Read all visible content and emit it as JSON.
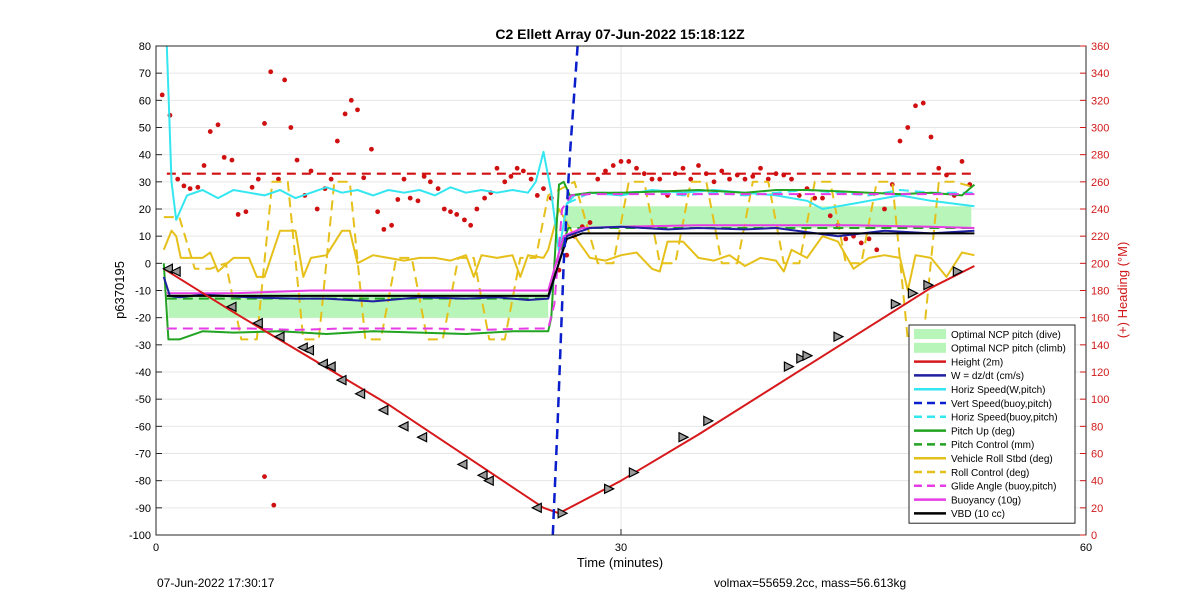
{
  "footer": {
    "timestamp": "07-Jun-2022 17:30:17",
    "info": "volmax=55659.2cc, mass=56.613kg"
  },
  "chart_data": {
    "type": "line",
    "title": "C2 Ellett Array 07-Jun-2022 15:18:12Z",
    "xlabel": "Time (minutes)",
    "ylabel": "p6370195",
    "y2label": "(+) Heading (°M)",
    "xlim": [
      0,
      60
    ],
    "ylim": [
      -100,
      80
    ],
    "y2lim": [
      0,
      360
    ],
    "xticks": [
      0,
      30,
      60
    ],
    "yticks": [
      -100,
      -90,
      -80,
      -70,
      -60,
      -50,
      -40,
      -30,
      -20,
      -10,
      0,
      10,
      20,
      30,
      40,
      50,
      60,
      70,
      80
    ],
    "y2ticks": [
      0,
      20,
      40,
      60,
      80,
      100,
      120,
      140,
      160,
      180,
      200,
      220,
      240,
      260,
      280,
      300,
      320,
      340,
      360
    ],
    "grid": true,
    "legend_position": "bottom-right",
    "colors": {
      "height": "#d7191c",
      "w": "#1f1fa0",
      "horiz": "#33e6f0",
      "vert": "#0a1ecc",
      "pitch": "#22a322",
      "roll": "#e6c01a",
      "glide": "#e63ce6",
      "vbd": "#000000",
      "band": "#b8f5b8",
      "heading": "#d01010",
      "right_axis": "#d01818"
    },
    "legend": [
      {
        "label": "Optimal NCP pitch (dive)",
        "style": "patch",
        "color": "#b8f5b8"
      },
      {
        "label": "Optimal NCP pitch (climb)",
        "style": "patch",
        "color": "#b8f5b8"
      },
      {
        "label": "Height (2m)",
        "style": "solid",
        "color": "#d7191c"
      },
      {
        "label": "W = dz/dt (cm/s)",
        "style": "solid",
        "color": "#1f1fa0"
      },
      {
        "label": "Horiz Speed(W,pitch)",
        "style": "solid",
        "color": "#33e6f0"
      },
      {
        "label": "Vert Speed(buoy,pitch)",
        "style": "dashed",
        "color": "#0a1ecc"
      },
      {
        "label": "Horiz Speed(buoy,pitch)",
        "style": "dashed",
        "color": "#33e6f0"
      },
      {
        "label": "Pitch Up (deg)",
        "style": "solid",
        "color": "#22a322"
      },
      {
        "label": "Pitch Control (mm)",
        "style": "dashed",
        "color": "#22a322"
      },
      {
        "label": "Vehicle Roll Stbd (deg)",
        "style": "solid",
        "color": "#e6c01a"
      },
      {
        "label": "Roll Control (deg)",
        "style": "dashed",
        "color": "#e6c01a"
      },
      {
        "label": "Glide Angle (buoy,pitch)",
        "style": "dashed",
        "color": "#e63ce6"
      },
      {
        "label": "Buoyancy (10g)",
        "style": "solid",
        "color": "#e63ce6"
      },
      {
        "label": "VBD (10 cc)",
        "style": "solid",
        "color": "#000000"
      }
    ],
    "heading_reference": 266,
    "ncp_bands": [
      {
        "x": [
          0.8,
          25.3
        ],
        "y": [
          -20,
          -11
        ]
      },
      {
        "x": [
          26.4,
          52.6
        ],
        "y": [
          13,
          21
        ]
      }
    ],
    "series": [
      {
        "key": "height",
        "name": "Height (2m)",
        "style": "solid",
        "color": "#d7191c",
        "width": 2,
        "x": [
          0.5,
          5,
          10,
          15,
          20,
          25,
          26,
          30,
          35,
          40,
          45,
          50,
          52.8
        ],
        "y": [
          -2,
          -18,
          -35,
          -52,
          -71,
          -90,
          -92,
          -80,
          -63,
          -45,
          -27,
          -9,
          -1
        ]
      },
      {
        "key": "w",
        "name": "W = dz/dt (cm/s)",
        "style": "solid",
        "color": "#1f1fa0",
        "width": 2,
        "x": [
          0.5,
          0.9,
          1.5,
          3,
          6,
          9,
          11,
          14,
          17,
          20,
          22,
          24,
          25.3,
          26.5,
          28,
          30,
          33,
          35,
          38,
          40,
          42,
          44,
          47,
          50,
          52.8
        ],
        "y": [
          -5,
          -12,
          -12.5,
          -11.5,
          -12.5,
          -13,
          -13,
          -14,
          -12.5,
          -13,
          -12.5,
          -13.5,
          -13,
          10,
          13,
          13.5,
          12.5,
          13,
          12.5,
          13,
          11.5,
          10,
          12,
          11,
          12
        ]
      },
      {
        "key": "horiz",
        "name": "Horiz Speed(W,pitch)",
        "style": "solid",
        "color": "#33e6f0",
        "width": 2,
        "x": [
          0.7,
          0.85,
          1.0,
          1.3,
          2,
          3,
          4,
          5,
          6,
          7,
          8,
          9,
          10,
          11,
          12,
          13,
          14,
          15,
          16,
          17,
          18,
          19,
          20,
          21,
          22,
          23,
          24,
          24.5,
          25,
          25.5,
          26,
          26.5,
          27,
          28,
          30,
          32,
          34,
          36,
          38,
          40,
          42,
          43,
          44,
          45,
          46,
          47,
          48,
          50,
          52.8
        ],
        "y": [
          80,
          55,
          30,
          16,
          25,
          27,
          24,
          27,
          26,
          25,
          27,
          24,
          26,
          28,
          26,
          27,
          25,
          27,
          26,
          27,
          25,
          28,
          26,
          27,
          26,
          27,
          26,
          30,
          41,
          26,
          4,
          22,
          25,
          26,
          25,
          27,
          26,
          27,
          26,
          25,
          23,
          20,
          21,
          22,
          23,
          24,
          25,
          23,
          21
        ]
      },
      {
        "key": "vert",
        "name": "Vert Speed(buoy,pitch)",
        "style": "dashed",
        "color": "#0a1ecc",
        "width": 2.5,
        "x": [
          25.6,
          25.9,
          26.3,
          26.7,
          27.2
        ],
        "y": [
          -100,
          -60,
          0,
          40,
          80
        ]
      },
      {
        "key": "horiz_b",
        "name": "Horiz Speed(buoy,pitch)",
        "style": "dashed",
        "color": "#33e6f0",
        "width": 2,
        "x": [
          26.5,
          28,
          30,
          32,
          34,
          36,
          38,
          40,
          42,
          44,
          46,
          48,
          50,
          52.8
        ],
        "y": [
          22,
          26,
          26,
          26.5,
          25,
          26,
          25,
          26,
          27,
          26,
          25,
          27,
          26,
          26
        ]
      },
      {
        "key": "pitch",
        "name": "Pitch Up (deg)",
        "style": "solid",
        "color": "#22a322",
        "width": 2,
        "x": [
          0.5,
          0.8,
          1.5,
          3,
          5,
          8,
          11,
          14,
          17,
          20,
          23,
          25.3,
          25.5,
          26.0,
          26.3,
          26.7,
          28,
          30,
          33,
          35,
          38,
          40,
          42,
          44,
          46,
          48,
          50,
          52,
          52.8
        ],
        "y": [
          0,
          -28,
          -28,
          -25,
          -25.5,
          -25,
          -26,
          -25,
          -25.5,
          -26,
          -25,
          -25,
          -20,
          29,
          30,
          25,
          26,
          26,
          26.5,
          27,
          26,
          27,
          27,
          26.5,
          26,
          25.5,
          26,
          25,
          29
        ]
      },
      {
        "key": "pitch_ctl",
        "name": "Pitch Control (mm)",
        "style": "dashed",
        "color": "#22a322",
        "width": 2,
        "x": [
          0.7,
          25.3,
          25.8,
          26.6,
          52.8
        ],
        "y": [
          -13,
          -13,
          0,
          13,
          13
        ]
      },
      {
        "key": "roll",
        "name": "Vehicle Roll Stbd (deg)",
        "style": "solid",
        "color": "#e6c01a",
        "width": 2,
        "x": [
          0.5,
          1,
          1.3,
          1.6,
          3,
          3.5,
          4,
          5,
          6,
          6.5,
          7,
          8,
          9,
          9.5,
          10,
          11,
          12,
          12.5,
          13,
          14,
          15,
          16,
          17,
          18,
          19,
          20,
          20.5,
          21,
          22,
          23,
          23.5,
          24,
          25,
          25.3,
          26,
          27,
          28,
          29,
          30,
          31,
          32,
          32.5,
          33,
          34,
          35,
          36,
          37,
          38,
          39,
          40,
          40.5,
          41,
          42,
          43,
          44,
          45,
          46,
          47,
          48,
          48.5,
          49,
          50,
          51,
          52,
          52.8
        ],
        "y": [
          5,
          12,
          10,
          2,
          2,
          4,
          -3,
          2,
          2,
          -5,
          -5,
          12,
          12,
          -5,
          2,
          3,
          12,
          12,
          0,
          3,
          2,
          1,
          2,
          2,
          1,
          3,
          -5,
          3,
          2,
          3,
          -5,
          3,
          2,
          5,
          20,
          10,
          2,
          1,
          3,
          4,
          -2,
          -3,
          8,
          8,
          2,
          1,
          3,
          -1,
          2,
          1,
          -3,
          5,
          2,
          10,
          8,
          -2,
          2,
          3,
          2,
          -10,
          3,
          2,
          -5,
          4,
          3
        ]
      },
      {
        "key": "roll_ctl",
        "name": "Roll Control (deg)",
        "style": "dashed",
        "color": "#e6c01a",
        "width": 2,
        "x": [
          0.5,
          1.5,
          2.5,
          3.5,
          4.5,
          5.5,
          6.5,
          7.5,
          8.5,
          9.5,
          10.5,
          11.5,
          12.5,
          13.5,
          14.5,
          15.5,
          16.5,
          17.5,
          18.5,
          19.5,
          20.5,
          21.5,
          22.5,
          23.5,
          24.5,
          25.3,
          27,
          28.5,
          29.5,
          30.5,
          31.5,
          32.5,
          33.5,
          34.5,
          35.5,
          36.5,
          37.5,
          38.5,
          39.5,
          40.5,
          41.5,
          42.5,
          43.5,
          44.5,
          45.5,
          46.5,
          47.5,
          48.5,
          49.5,
          50.5,
          51.5,
          52.8
        ],
        "y": [
          17,
          17,
          -2,
          -2,
          0,
          -28,
          -28,
          30,
          30,
          -28,
          -28,
          30,
          30,
          -28,
          -28,
          2,
          2,
          -28,
          -28,
          2,
          2,
          -28,
          -28,
          2,
          2,
          25,
          30,
          0,
          0,
          30,
          30,
          0,
          0,
          30,
          30,
          0,
          0,
          30,
          30,
          0,
          0,
          30,
          30,
          0,
          0,
          30,
          30,
          -28,
          -28,
          30,
          30,
          28
        ]
      },
      {
        "key": "glide",
        "name": "Glide Angle (buoy,pitch)",
        "style": "dashed",
        "color": "#e63ce6",
        "width": 2,
        "x": [
          0.7,
          3,
          6,
          9,
          12,
          15,
          18,
          21,
          24,
          25.3,
          25.7,
          26.2,
          26.8,
          28,
          30,
          33,
          36,
          40,
          44,
          48,
          52.8
        ],
        "y": [
          -24,
          -24,
          -24,
          -24.5,
          -24,
          -24,
          -24,
          -24.5,
          -24,
          -24,
          -15,
          20,
          25,
          25.5,
          25.5,
          25.5,
          25.5,
          25.5,
          25.5,
          25.5,
          25.5
        ]
      },
      {
        "key": "buoy",
        "name": "Buoyancy (10g)",
        "style": "solid",
        "color": "#e63ce6",
        "width": 2,
        "x": [
          0.7,
          5,
          10,
          15,
          20,
          25.3,
          26.3,
          27.5,
          30,
          35,
          40,
          45,
          50,
          52.8
        ],
        "y": [
          -11,
          -11,
          -10,
          -10,
          -10,
          -10,
          10,
          13,
          13.5,
          14,
          14,
          14,
          13.5,
          13
        ]
      },
      {
        "key": "vbd",
        "name": "VBD (10 cc)",
        "style": "solid",
        "color": "#000000",
        "width": 2,
        "x": [
          0.7,
          5,
          10,
          15,
          20,
          25.3,
          26.5,
          27.5,
          30,
          35,
          40,
          45,
          50,
          52.8
        ],
        "y": [
          -12,
          -12,
          -12,
          -12,
          -12,
          -12,
          9,
          11,
          11,
          11,
          11,
          11,
          11,
          11
        ]
      }
    ],
    "height_markers": {
      "x": [
        0.8,
        1.3,
        4.9,
        6.6,
        8.0,
        9.5,
        9.9,
        10.8,
        11.3,
        12.0,
        13.2,
        14.7,
        16.0,
        17.2,
        19.8,
        21.1,
        21.5,
        24.6,
        26.2,
        29.2,
        30.8,
        34.0,
        35.6,
        40.8,
        41.6,
        42.0,
        44.0,
        47.7,
        48.8,
        49.8,
        51.7
      ],
      "y": [
        -2,
        -3,
        -16,
        -22,
        -27,
        -31,
        -32,
        -37,
        -38,
        -43,
        -48,
        -54,
        -60,
        -64,
        -74,
        -78,
        -80,
        -90,
        -92,
        -83,
        -77,
        -64,
        -58,
        -38,
        -35,
        -34,
        -27,
        -15,
        -11,
        -8,
        -3
      ]
    },
    "heading_points": {
      "x": [
        0.4,
        0.9,
        1.4,
        1.8,
        2.2,
        2.7,
        3.1,
        3.5,
        4.0,
        4.4,
        4.9,
        5.3,
        5.8,
        6.2,
        6.6,
        7.0,
        7.4,
        7.9,
        8.3,
        8.7,
        9.1,
        9.6,
        10.0,
        10.4,
        10.9,
        11.3,
        11.7,
        12.2,
        12.6,
        13.0,
        13.4,
        13.9,
        14.3,
        14.7,
        15.2,
        15.6,
        16.0,
        16.4,
        16.9,
        17.3,
        17.7,
        18.2,
        18.6,
        19.0,
        19.4,
        19.9,
        20.3,
        20.7,
        21.2,
        21.6,
        22.0,
        22.5,
        22.9,
        23.3,
        23.7,
        24.2,
        24.6,
        25.0,
        25.5,
        26.0,
        26.5,
        27.0,
        27.5,
        28.0,
        28.5,
        29.0,
        29.5,
        30.0,
        30.5,
        31.0,
        31.5,
        32.0,
        32.5,
        33.0,
        33.5,
        34.0,
        34.5,
        35.0,
        35.5,
        36.0,
        36.5,
        37.0,
        37.5,
        38.0,
        38.5,
        39.0,
        39.5,
        40.0,
        40.5,
        41.0,
        41.5,
        42.0,
        42.5,
        43.0,
        43.5,
        44.0,
        44.5,
        45.0,
        45.5,
        46.0,
        46.5,
        47.0,
        47.5,
        48.0,
        48.5,
        49.0,
        49.5,
        50.0,
        50.5,
        51.0,
        51.5,
        52.0,
        52.5,
        7.0,
        7.6
      ],
      "y": [
        324,
        309,
        262,
        257,
        255,
        256,
        272,
        297,
        302,
        278,
        276,
        236,
        238,
        256,
        262,
        303,
        341,
        262,
        335,
        300,
        276,
        250,
        268,
        240,
        255,
        262,
        290,
        310,
        320,
        313,
        263,
        284,
        238,
        225,
        228,
        247,
        262,
        248,
        246,
        264,
        260,
        255,
        240,
        238,
        236,
        232,
        228,
        240,
        248,
        252,
        270,
        260,
        264,
        270,
        268,
        262,
        250,
        255,
        248,
        195,
        206,
        220,
        227,
        230,
        262,
        268,
        272,
        275,
        275,
        270,
        266,
        262,
        262,
        250,
        266,
        270,
        262,
        272,
        266,
        260,
        268,
        262,
        265,
        262,
        264,
        270,
        262,
        266,
        265,
        262,
        250,
        255,
        248,
        248,
        235,
        228,
        218,
        220,
        215,
        218,
        210,
        240,
        258,
        290,
        300,
        316,
        318,
        293,
        270,
        265,
        250,
        275,
        258,
        43,
        22
      ]
    }
  }
}
